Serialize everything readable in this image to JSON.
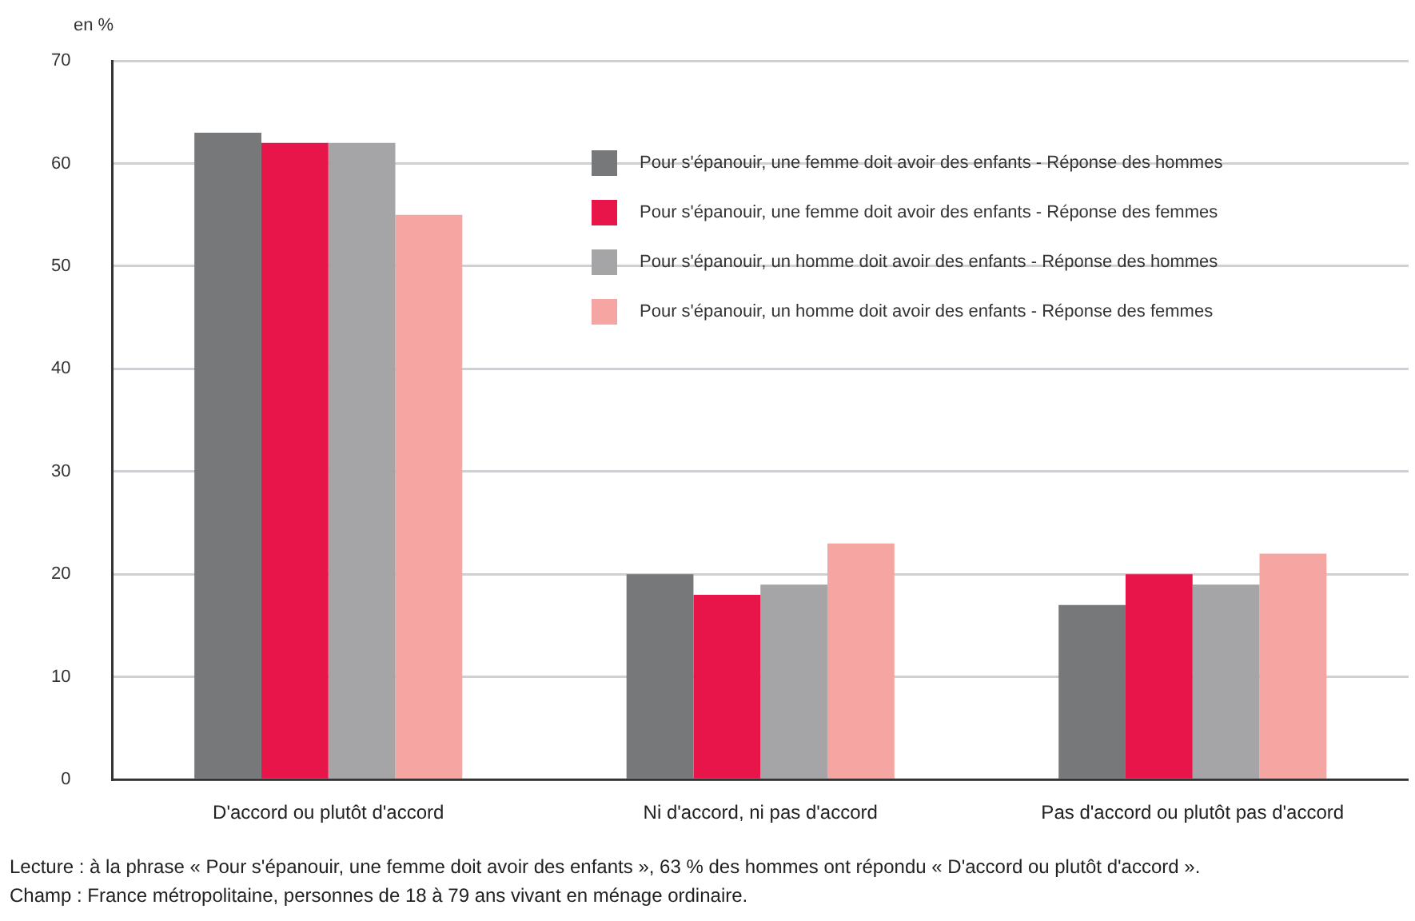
{
  "chart_data": {
    "type": "bar",
    "ylabel": "en %",
    "categories": [
      "D'accord ou plutôt d'accord",
      "Ni d'accord, ni pas d'accord",
      "Pas d'accord ou plutôt pas d'accord"
    ],
    "series": [
      {
        "name": "Pour s'épanouir, une femme doit avoir des enfants - Réponse des hommes",
        "color": "#77787a",
        "values": [
          63,
          20,
          17
        ]
      },
      {
        "name": "Pour s'épanouir, une femme doit avoir des enfants - Réponse des femmes",
        "color": "#e8154a",
        "values": [
          62,
          18,
          20
        ]
      },
      {
        "name": "Pour s'épanouir, un homme doit avoir des enfants - Réponse des hommes",
        "color": "#a5a5a7",
        "values": [
          62,
          19,
          19
        ]
      },
      {
        "name": "Pour s'épanouir, un homme doit avoir des enfants - Réponse des femmes",
        "color": "#f5a5a2",
        "values": [
          55,
          23,
          22
        ]
      }
    ],
    "ylim": [
      0,
      70
    ],
    "yticks": [
      0,
      10,
      20,
      30,
      40,
      50,
      60,
      70
    ],
    "grid": "y",
    "legend": "top right",
    "annotations": [
      "Lecture : à la phrase « Pour s'épanouir, une femme doit avoir des enfants », 63 % des hommes ont répondu « D'accord ou plutôt d'accord ».",
      "Champ : France métropolitaine, personnes de 18 à 79 ans vivant en ménage ordinaire."
    ]
  }
}
